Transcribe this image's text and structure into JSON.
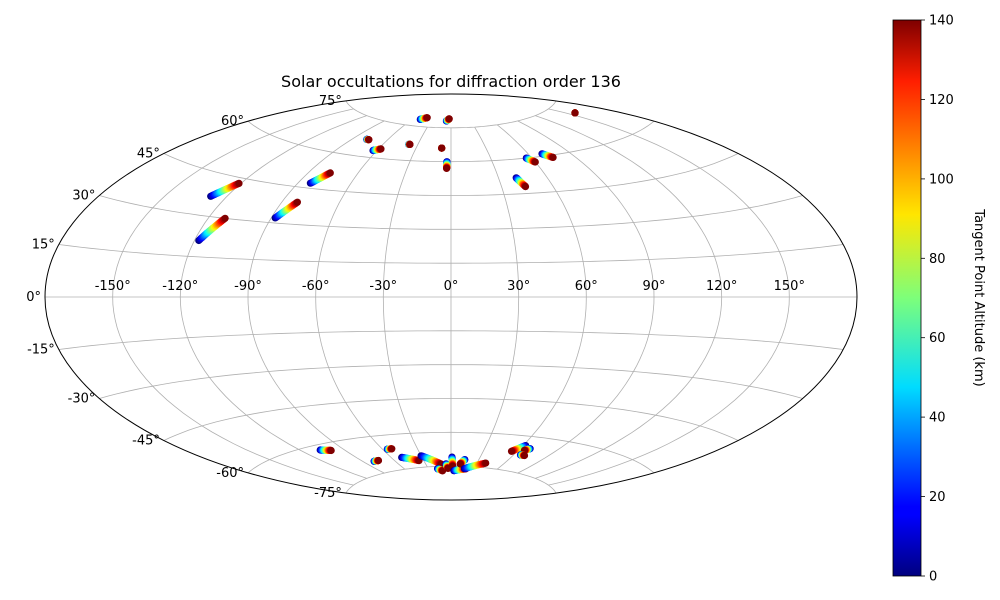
{
  "chart_data": {
    "type": "scatter",
    "projection": "aitoff",
    "title": "Solar occultations for diffraction order 136",
    "grid": true,
    "x_ticks": [
      "-150°",
      "-120°",
      "-90°",
      "-60°",
      "-30°",
      "0°",
      "30°",
      "60°",
      "90°",
      "120°",
      "150°"
    ],
    "y_ticks": [
      "75°",
      "60°",
      "45°",
      "30°",
      "15°",
      "0°",
      "-15°",
      "-30°",
      "-45°",
      "-60°",
      "-75°"
    ],
    "colorbar": {
      "label": "Tangent Point Altitude (km)",
      "colormap": "jet",
      "range": [
        0,
        140
      ],
      "ticks": [
        "0",
        "20",
        "40",
        "60",
        "80",
        "100",
        "120",
        "140"
      ]
    },
    "altitude_range_km": [
      0,
      140
    ],
    "tracks": [
      {
        "lon": [
          -128,
          -121
        ],
        "lat": [
          37,
          43
        ]
      },
      {
        "lon": [
          -118,
          -112
        ],
        "lat": [
          21,
          30
        ]
      },
      {
        "lon": [
          -88,
          -82
        ],
        "lat": [
          32,
          39
        ]
      },
      {
        "lon": [
          -83,
          -77
        ],
        "lat": [
          47,
          52
        ]
      },
      {
        "lon": [
          -63,
          -58
        ],
        "lat": [
          63,
          64
        ]
      },
      {
        "lon": [
          -78,
          -76
        ],
        "lat": [
          67,
          67
        ]
      },
      {
        "lon": [
          -48,
          -40
        ],
        "lat": [
          78,
          79
        ]
      },
      {
        "lon": [
          -38,
          -37
        ],
        "lat": [
          67,
          67
        ]
      },
      {
        "lon": [
          -8,
          -8
        ],
        "lat": [
          66,
          66
        ]
      },
      {
        "lon": [
          -7,
          -3
        ],
        "lat": [
          78,
          79
        ]
      },
      {
        "lon": [
          -3,
          -3
        ],
        "lat": [
          60,
          57
        ]
      },
      {
        "lon": [
          41,
          44
        ],
        "lat": [
          52,
          48
        ]
      },
      {
        "lon": [
          56,
          60
        ],
        "lat": [
          60,
          58
        ]
      },
      {
        "lon": [
          70,
          75
        ],
        "lat": [
          61,
          59
        ]
      },
      {
        "lon": [
          156,
          156
        ],
        "lat": [
          71,
          71
        ]
      },
      {
        "lon": [
          -107,
          -100
        ],
        "lat": [
          -62,
          -63
        ]
      },
      {
        "lon": [
          -80,
          -75
        ],
        "lat": [
          -70,
          -70
        ]
      },
      {
        "lon": [
          -56,
          -52
        ],
        "lat": [
          -66,
          -66
        ]
      },
      {
        "lon": [
          -50,
          -35
        ],
        "lat": [
          -70,
          -72
        ]
      },
      {
        "lon": [
          -30,
          -12
        ],
        "lat": [
          -70,
          -74
        ]
      },
      {
        "lon": [
          -18,
          -12
        ],
        "lat": [
          -76,
          -77
        ]
      },
      {
        "lon": [
          -6,
          -4
        ],
        "lat": [
          -74,
          -76
        ]
      },
      {
        "lon": [
          1,
          2
        ],
        "lat": [
          -71,
          -75
        ]
      },
      {
        "lon": [
          4,
          20
        ],
        "lat": [
          -77,
          -76
        ]
      },
      {
        "lon": [
          15,
          11
        ],
        "lat": [
          -72,
          -74
        ]
      },
      {
        "lon": [
          18,
          40
        ],
        "lat": [
          -76,
          -73
        ]
      },
      {
        "lon": [
          62,
          55
        ],
        "lat": [
          -64,
          -67
        ]
      },
      {
        "lon": [
          68,
          65
        ],
        "lat": [
          -65,
          -66
        ]
      },
      {
        "lon": [
          66,
          70
        ],
        "lat": [
          -68,
          -68
        ]
      }
    ]
  }
}
